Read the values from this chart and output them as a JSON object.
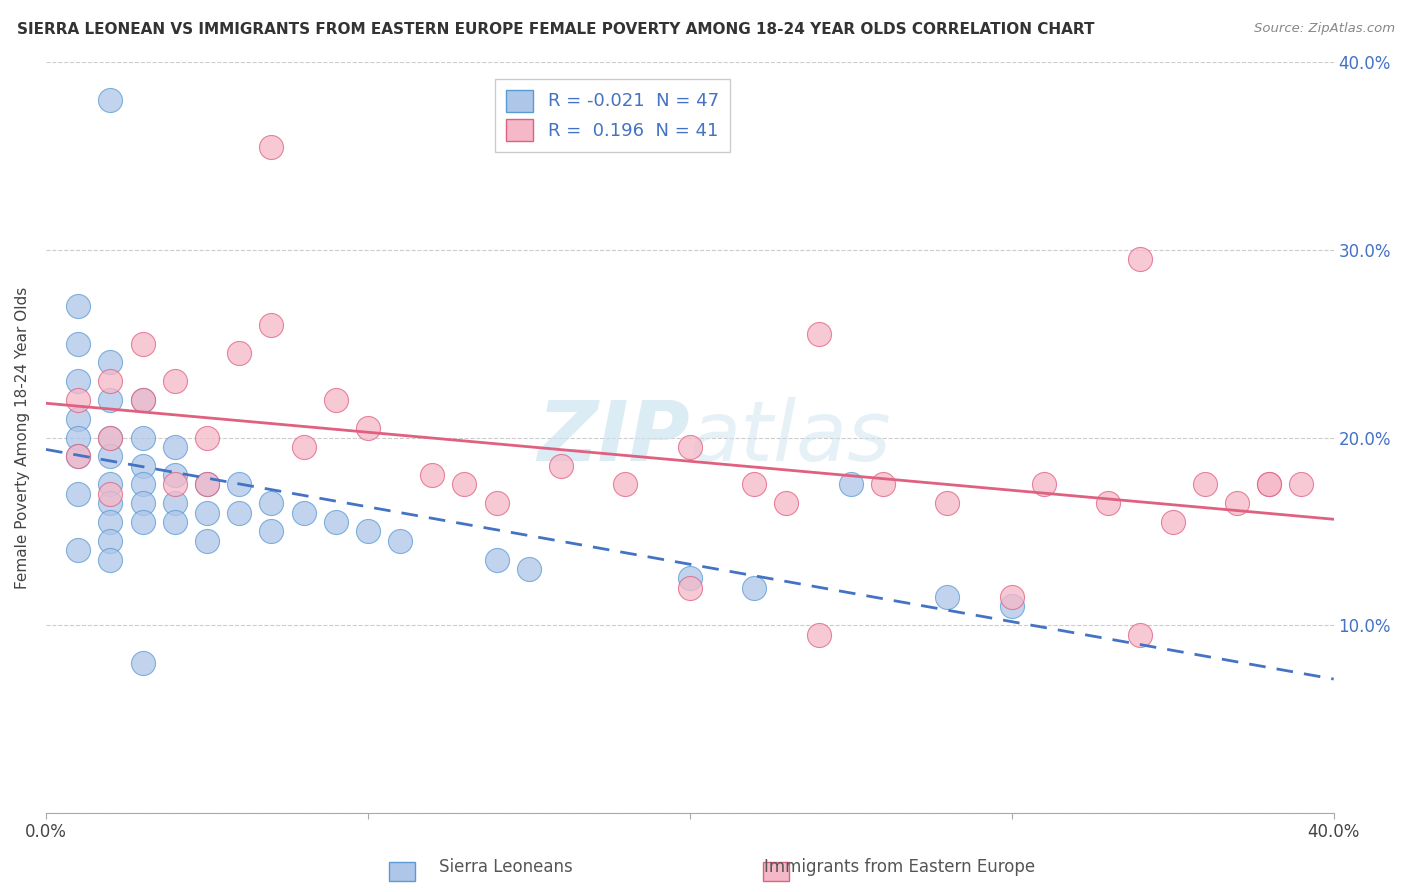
{
  "title": "SIERRA LEONEAN VS IMMIGRANTS FROM EASTERN EUROPE FEMALE POVERTY AMONG 18-24 YEAR OLDS CORRELATION CHART",
  "source": "Source: ZipAtlas.com",
  "ylabel": "Female Poverty Among 18-24 Year Olds",
  "xlim": [
    0.0,
    0.4
  ],
  "ylim": [
    0.0,
    0.4
  ],
  "yticks": [
    0.0,
    0.1,
    0.2,
    0.3,
    0.4
  ],
  "xticks": [
    0.0,
    0.1,
    0.2,
    0.3,
    0.4
  ],
  "xticklabels": [
    "0.0%",
    "",
    "",
    "",
    "40.0%"
  ],
  "yticklabels_right": [
    "",
    "10.0%",
    "20.0%",
    "30.0%",
    "40.0%"
  ],
  "blue_R": "-0.021",
  "blue_N": "47",
  "pink_R": "0.196",
  "pink_N": "41",
  "blue_color": "#aec6e8",
  "pink_color": "#f5b8c8",
  "blue_edge": "#5b9bd5",
  "pink_edge": "#e06080",
  "trend_blue_color": "#4472c4",
  "trend_pink_color": "#e06080",
  "watermark_color": "#cce4f0",
  "blue_x": [
    0.01,
    0.01,
    0.01,
    0.01,
    0.01,
    0.01,
    0.01,
    0.01,
    0.02,
    0.02,
    0.02,
    0.02,
    0.02,
    0.02,
    0.02,
    0.02,
    0.02,
    0.03,
    0.03,
    0.03,
    0.03,
    0.03,
    0.03,
    0.04,
    0.04,
    0.04,
    0.04,
    0.05,
    0.05,
    0.05,
    0.06,
    0.06,
    0.07,
    0.07,
    0.08,
    0.09,
    0.1,
    0.11,
    0.14,
    0.15,
    0.2,
    0.22,
    0.28,
    0.3,
    0.02,
    0.03,
    0.25
  ],
  "blue_y": [
    0.27,
    0.25,
    0.23,
    0.21,
    0.2,
    0.19,
    0.17,
    0.14,
    0.24,
    0.22,
    0.2,
    0.19,
    0.175,
    0.165,
    0.155,
    0.145,
    0.135,
    0.22,
    0.2,
    0.185,
    0.175,
    0.165,
    0.155,
    0.195,
    0.18,
    0.165,
    0.155,
    0.175,
    0.16,
    0.145,
    0.175,
    0.16,
    0.165,
    0.15,
    0.16,
    0.155,
    0.15,
    0.145,
    0.135,
    0.13,
    0.125,
    0.12,
    0.115,
    0.11,
    0.38,
    0.08,
    0.175
  ],
  "pink_x": [
    0.01,
    0.01,
    0.02,
    0.02,
    0.02,
    0.03,
    0.03,
    0.04,
    0.04,
    0.05,
    0.05,
    0.06,
    0.07,
    0.08,
    0.09,
    0.1,
    0.12,
    0.13,
    0.14,
    0.16,
    0.18,
    0.2,
    0.22,
    0.23,
    0.24,
    0.26,
    0.28,
    0.3,
    0.31,
    0.33,
    0.34,
    0.35,
    0.36,
    0.37,
    0.38,
    0.07,
    0.2,
    0.24,
    0.34,
    0.38,
    0.39
  ],
  "pink_y": [
    0.22,
    0.19,
    0.23,
    0.2,
    0.17,
    0.25,
    0.22,
    0.23,
    0.175,
    0.2,
    0.175,
    0.245,
    0.26,
    0.195,
    0.22,
    0.205,
    0.18,
    0.175,
    0.165,
    0.185,
    0.175,
    0.195,
    0.175,
    0.165,
    0.255,
    0.175,
    0.165,
    0.115,
    0.175,
    0.165,
    0.095,
    0.155,
    0.175,
    0.165,
    0.175,
    0.355,
    0.12,
    0.095,
    0.295,
    0.175,
    0.175
  ]
}
